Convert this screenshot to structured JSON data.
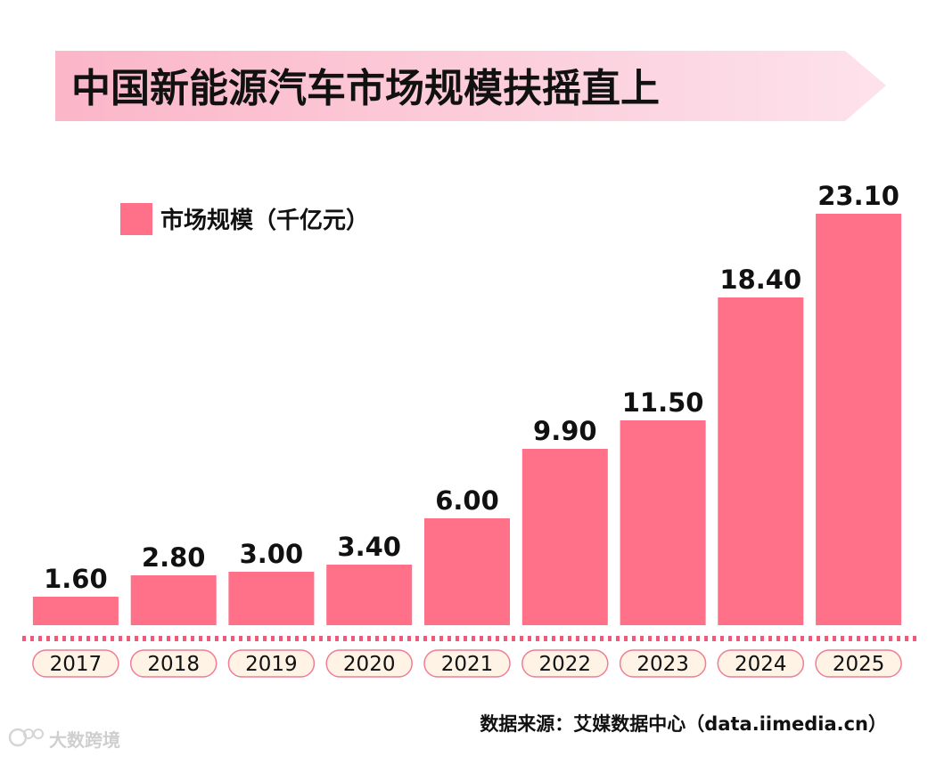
{
  "colors": {
    "bar": "#ff7089",
    "title_banner_start": "#fbb6c8",
    "title_banner_end": "#fde2ec",
    "axis_dots": "#f05a7a",
    "tick_pill_fill": "#fff3e6",
    "tick_pill_stroke": "#ef7d93"
  },
  "chart_data": {
    "type": "bar",
    "title": "中国新能源汽车市场规模扶摇直上",
    "categories": [
      "2017",
      "2018",
      "2019",
      "2020",
      "2021",
      "2022",
      "2023",
      "2024",
      "2025"
    ],
    "series": [
      {
        "name": "市场规模（千亿元）",
        "values": [
          1.6,
          2.8,
          3.0,
          3.4,
          6.0,
          9.9,
          11.5,
          18.4,
          23.1
        ],
        "labels": [
          "1.60",
          "2.80",
          "3.00",
          "3.40",
          "6.00",
          "9.90",
          "11.50",
          "18.40",
          "23.10"
        ]
      }
    ],
    "xlabel": "",
    "ylabel": "",
    "ylim": [
      0,
      23.1
    ],
    "grid": false,
    "legend_position": "top-left"
  },
  "source": "数据来源：艾媒数据中心（data.iimedia.cn）",
  "watermark": "大数跨境"
}
